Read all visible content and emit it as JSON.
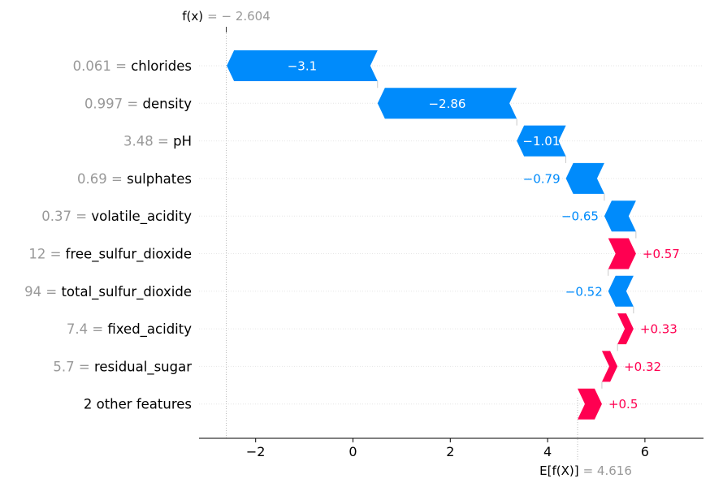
{
  "chart_data": {
    "type": "waterfall",
    "fx_label": "f(x)",
    "fx_value_text": "= − 2.604",
    "fx_value": -2.604,
    "base_label": "E[f(X)]",
    "base_value_text": "= 4.616",
    "base_value": 4.616,
    "xlim": [
      -3.15,
      7.2
    ],
    "xticks": [
      -2,
      0,
      2,
      4,
      6
    ],
    "xtick_labels": [
      "−2",
      "0",
      "2",
      "4",
      "6"
    ],
    "colors": {
      "negative": "#008bfb",
      "positive": "#ff0051",
      "feature_value": "#999999"
    },
    "features": [
      {
        "value": "0.061",
        "name": "chlorides",
        "contribution": -3.1,
        "label": "−3.1"
      },
      {
        "value": "0.997",
        "name": "density",
        "contribution": -2.86,
        "label": "−2.86"
      },
      {
        "value": "3.48",
        "name": "pH",
        "contribution": -1.01,
        "label": "−1.01"
      },
      {
        "value": "0.69",
        "name": "sulphates",
        "contribution": -0.79,
        "label": "−0.79"
      },
      {
        "value": "0.37",
        "name": "volatile_acidity",
        "contribution": -0.65,
        "label": "−0.65"
      },
      {
        "value": "12",
        "name": "free_sulfur_dioxide",
        "contribution": 0.57,
        "label": "+0.57"
      },
      {
        "value": "94",
        "name": "total_sulfur_dioxide",
        "contribution": -0.52,
        "label": "−0.52"
      },
      {
        "value": "7.4",
        "name": "fixed_acidity",
        "contribution": 0.33,
        "label": "+0.33"
      },
      {
        "value": "5.7",
        "name": "residual_sugar",
        "contribution": 0.32,
        "label": "+0.32"
      },
      {
        "value": "",
        "name": "2 other features",
        "contribution": 0.5,
        "label": "+0.5"
      }
    ]
  }
}
